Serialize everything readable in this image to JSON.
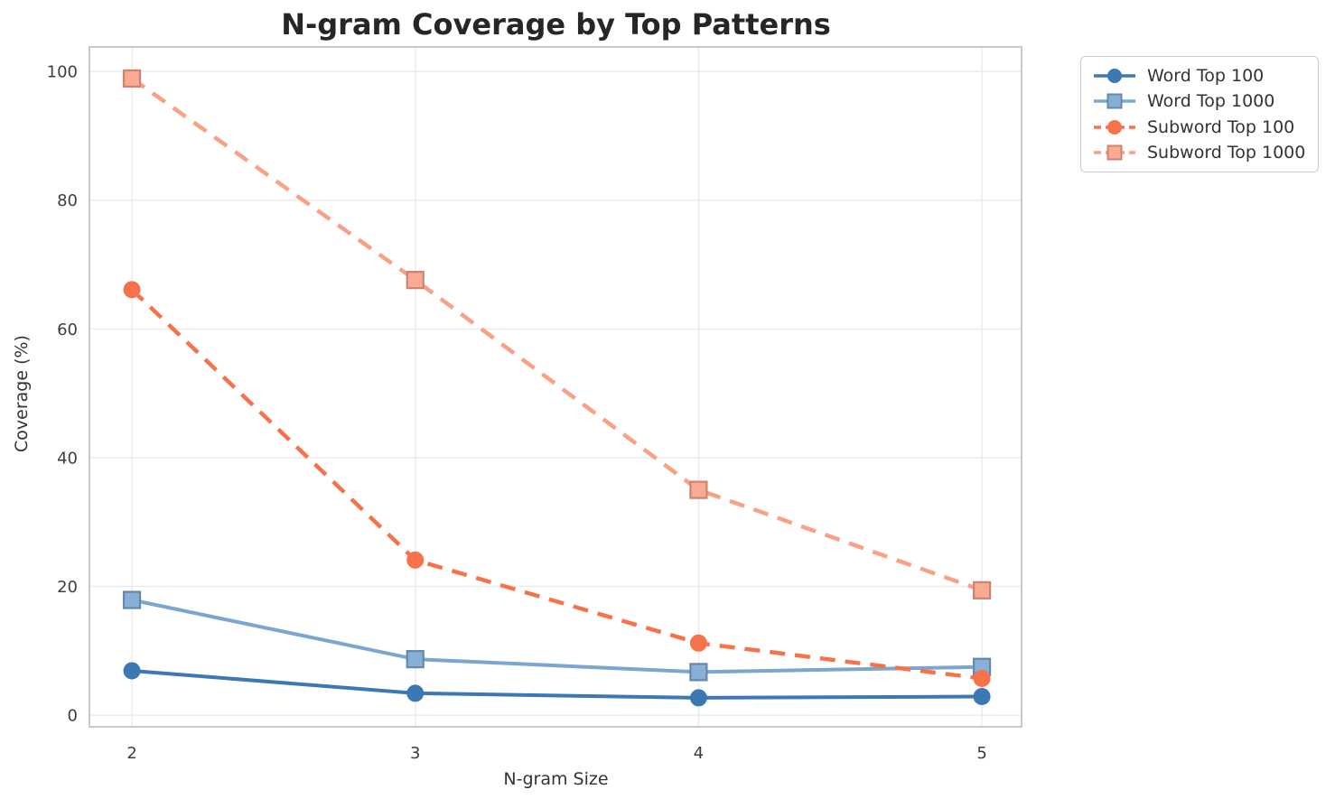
{
  "figure": {
    "background": "#ffffff"
  },
  "chart_data": {
    "type": "line",
    "title": "N-gram Coverage by Top Patterns",
    "xlabel": "N-gram Size",
    "ylabel": "Coverage (%)",
    "x": [
      2,
      3,
      4,
      5
    ],
    "xticks": [
      "2",
      "3",
      "4",
      "5"
    ],
    "yticks": [
      0,
      20,
      40,
      60,
      80,
      100
    ],
    "xlim": [
      1.85,
      5.14
    ],
    "ylim": [
      -1.8,
      103.8
    ],
    "grid": true,
    "legend_position": "outside-top-right",
    "colors": {
      "gridline": "#ececec",
      "spine": "#c9c9c9",
      "tick_label": "#3d3d3d",
      "title_text": "#262626",
      "axis_label_text": "#333333"
    },
    "series": [
      {
        "name": "Word Top 100",
        "color": "#3b78b4",
        "marker": "circle",
        "linestyle": "solid",
        "values": [
          6.9,
          3.4,
          2.7,
          2.9
        ]
      },
      {
        "name": "Word Top 1000",
        "color": "#7ba6d0",
        "marker": "square",
        "linestyle": "solid",
        "values": [
          17.9,
          8.7,
          6.7,
          7.5
        ]
      },
      {
        "name": "Subword Top 100",
        "color": "#f6724b",
        "marker": "circle",
        "linestyle": "dashed",
        "values": [
          66.1,
          24.1,
          11.2,
          5.7
        ]
      },
      {
        "name": "Subword Top 1000",
        "color": "#f9a186",
        "marker": "square",
        "linestyle": "dashed",
        "values": [
          98.9,
          67.6,
          35.0,
          19.4
        ]
      }
    ]
  }
}
